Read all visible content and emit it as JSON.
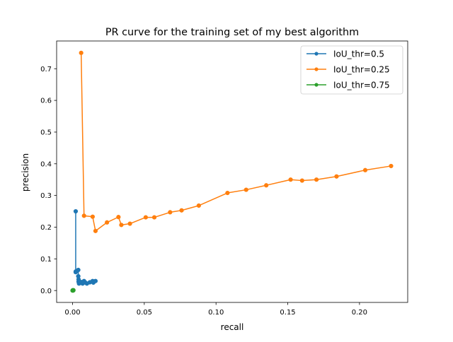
{
  "chart_data": {
    "type": "line",
    "title": "PR curve for the training set of my best algorithm",
    "xlabel": "recall",
    "ylabel": "precision",
    "xlim": [
      -0.0111,
      0.2336
    ],
    "ylim": [
      -0.0375,
      0.7875
    ],
    "xticks": [
      0.0,
      0.05,
      0.1,
      0.15,
      0.2
    ],
    "xtick_labels": [
      "0.00",
      "0.05",
      "0.10",
      "0.15",
      "0.20"
    ],
    "yticks": [
      0.0,
      0.1,
      0.2,
      0.3,
      0.4,
      0.5,
      0.6,
      0.7
    ],
    "ytick_labels": [
      "0.0",
      "0.1",
      "0.2",
      "0.3",
      "0.4",
      "0.5",
      "0.6",
      "0.7"
    ],
    "grid": false,
    "legend_position": "top-right",
    "series": [
      {
        "name": "IoU_thr=0.5",
        "color": "#1f77b4",
        "x": [
          0.0022,
          0.0022,
          0.0022,
          0.003,
          0.004,
          0.004,
          0.0042,
          0.0042,
          0.0045,
          0.0052,
          0.006,
          0.007,
          0.008,
          0.009,
          0.01,
          0.012,
          0.014,
          0.0145,
          0.016
        ],
        "y": [
          0.25,
          0.06,
          0.058,
          0.062,
          0.065,
          0.045,
          0.035,
          0.028,
          0.022,
          0.025,
          0.027,
          0.022,
          0.03,
          0.025,
          0.022,
          0.026,
          0.03,
          0.025,
          0.03
        ]
      },
      {
        "name": "IoU_thr=0.25",
        "color": "#ff7f0e",
        "x": [
          0.006,
          0.008,
          0.014,
          0.016,
          0.024,
          0.032,
          0.034,
          0.04,
          0.051,
          0.057,
          0.068,
          0.076,
          0.088,
          0.108,
          0.121,
          0.135,
          0.152,
          0.16,
          0.17,
          0.184,
          0.204,
          0.222
        ],
        "y": [
          0.75,
          0.236,
          0.233,
          0.188,
          0.215,
          0.232,
          0.207,
          0.211,
          0.231,
          0.231,
          0.247,
          0.253,
          0.268,
          0.308,
          0.318,
          0.332,
          0.35,
          0.347,
          0.35,
          0.36,
          0.38,
          0.393
        ]
      },
      {
        "name": "IoU_thr=0.75",
        "color": "#2ca02c",
        "x": [
          0.0,
          0.0002,
          0.0004,
          0.0006
        ],
        "y": [
          0.0,
          0.001,
          0.0,
          0.001
        ]
      }
    ]
  }
}
